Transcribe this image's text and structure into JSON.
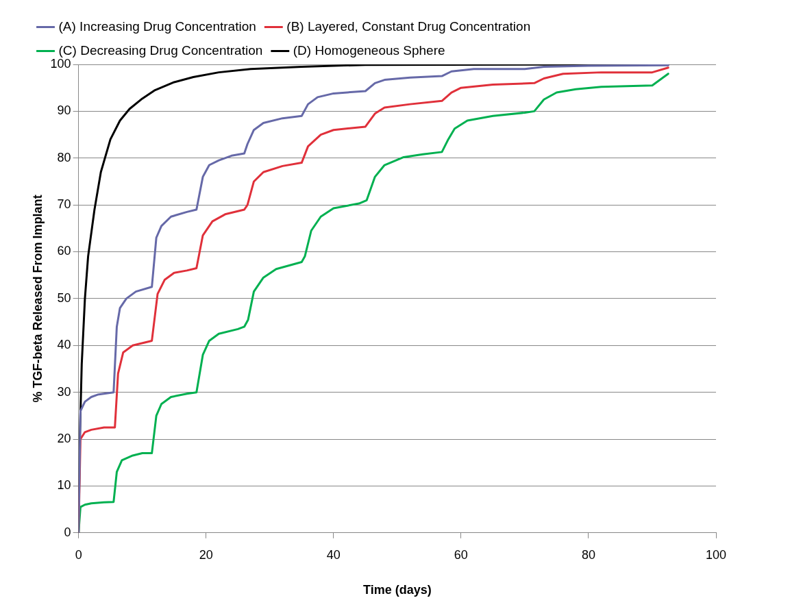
{
  "chart_data": {
    "type": "line",
    "xlabel": "Time (days)",
    "ylabel": "% TGF-beta Released From Implant",
    "xlim": [
      0,
      100
    ],
    "xticks": [
      0,
      20,
      40,
      60,
      80,
      100
    ],
    "ylim": [
      0,
      100
    ],
    "yticks": [
      0,
      10,
      20,
      30,
      40,
      50,
      60,
      70,
      80,
      90,
      100
    ],
    "grid": "y",
    "legend": "top",
    "marker": "none",
    "line_style": "solid",
    "series": [
      {
        "name": "(A) Increasing Drug Concentration",
        "color": "#6669a8",
        "x": [
          0,
          0.3,
          1,
          2,
          3,
          5.5,
          6,
          6.5,
          7.5,
          9,
          11.5,
          12.2,
          13,
          14.5,
          17,
          18.5,
          19.5,
          20.5,
          22,
          24,
          26,
          26.5,
          27.5,
          29,
          32,
          35,
          36,
          37.5,
          40,
          45,
          46.5,
          48,
          52,
          57,
          58.5,
          62,
          70,
          73,
          80,
          92.5
        ],
        "values": [
          0,
          26,
          28,
          29,
          29.5,
          30,
          44,
          48,
          50,
          51.5,
          52.5,
          63,
          65.5,
          67.5,
          68.5,
          69,
          76,
          78.5,
          79.5,
          80.5,
          81,
          83,
          86,
          87.5,
          88.5,
          89,
          91.5,
          93,
          93.8,
          94.3,
          96,
          96.7,
          97.2,
          97.5,
          98.5,
          99,
          99,
          99.5,
          99.7,
          99.8
        ]
      },
      {
        "name": "(B) Layered, Constant Drug Concentration",
        "color": "#e0303a",
        "x": [
          0,
          0.3,
          1,
          2,
          4,
          5.7,
          6.2,
          7,
          8.5,
          11.5,
          12.4,
          13.5,
          15,
          17,
          18.5,
          19.5,
          21,
          23,
          26,
          26.5,
          27.5,
          29,
          32,
          35,
          36,
          38,
          40,
          45,
          46.5,
          48,
          52,
          57,
          58.5,
          60,
          65,
          71.5,
          73,
          76,
          82,
          90,
          92.5
        ],
        "values": [
          0,
          20,
          21.5,
          22,
          22.5,
          22.5,
          34,
          38.5,
          40,
          41,
          51,
          54,
          55.5,
          56,
          56.5,
          63.5,
          66.5,
          68,
          69,
          70,
          75,
          77,
          78.3,
          79,
          82.5,
          85,
          86,
          86.7,
          89.5,
          90.8,
          91.5,
          92.2,
          94,
          95,
          95.7,
          96,
          97,
          98,
          98.3,
          98.3,
          99.3
        ]
      },
      {
        "name": "(C) Decreasing Drug Concentration",
        "color": "#00b050",
        "x": [
          0,
          0.3,
          1,
          2,
          4,
          5.5,
          6,
          6.8,
          8.5,
          10,
          11.5,
          12.2,
          13,
          14.5,
          17,
          18.5,
          19.5,
          20.5,
          22,
          25,
          26,
          26.6,
          27.5,
          29,
          31,
          35,
          35.5,
          36.5,
          38,
          40,
          44,
          45.2,
          46.5,
          48,
          51,
          54,
          57,
          58,
          59,
          61,
          65,
          70,
          71.5,
          73,
          75,
          78,
          82,
          90,
          91.5,
          92.5
        ],
        "values": [
          0,
          5.5,
          6,
          6.3,
          6.5,
          6.6,
          13,
          15.5,
          16.5,
          17,
          17,
          25,
          27.5,
          29,
          29.7,
          30,
          38,
          41,
          42.5,
          43.5,
          44,
          45.5,
          51.5,
          54.5,
          56.3,
          57.8,
          59,
          64.5,
          67.5,
          69.3,
          70.3,
          71,
          76,
          78.5,
          80.2,
          80.8,
          81.3,
          84,
          86.3,
          88,
          89,
          89.7,
          90,
          92.5,
          94,
          94.7,
          95.2,
          95.5,
          97,
          98
        ]
      },
      {
        "name": "(D) Homogeneous Sphere",
        "color": "#000000",
        "x": [
          0,
          0.2,
          0.5,
          1,
          1.5,
          2.5,
          3.5,
          5,
          6.5,
          8,
          10,
          12,
          15,
          18,
          22,
          27,
          35,
          45,
          92.5
        ],
        "values": [
          0,
          20,
          36,
          50,
          59,
          69,
          77,
          84,
          88,
          90.5,
          92.7,
          94.5,
          96.2,
          97.3,
          98.3,
          99,
          99.5,
          99.9,
          100
        ]
      }
    ]
  }
}
